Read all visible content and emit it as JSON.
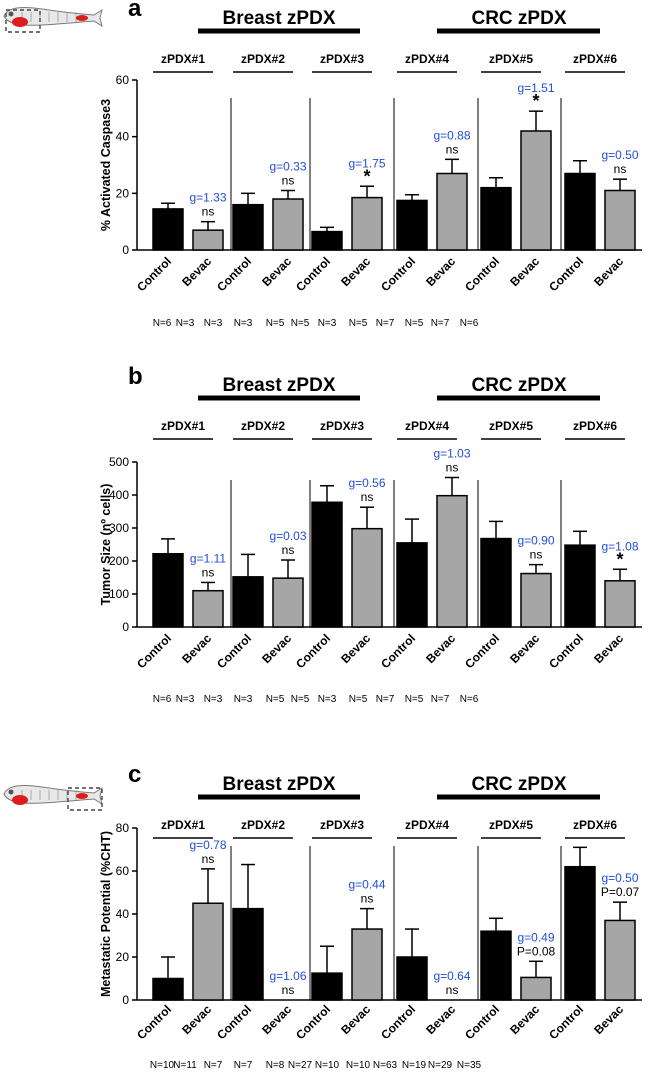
{
  "colors": {
    "control": "#000000",
    "bevac": "#a6a6a6",
    "effect": "#1f4fd6"
  },
  "icons": [
    "zebrafish-tumor-site-icon",
    "zebrafish-tail-site-icon"
  ],
  "chart_data": [
    {
      "panel": "a",
      "type": "bar",
      "ylabel": "% Activated Caspase3",
      "ylim": [
        0,
        60
      ],
      "yticks": [
        "0",
        "20",
        "40",
        "60"
      ],
      "groups": [
        {
          "label": "Breast zPDX",
          "members": [
            "zPDX#1",
            "zPDX#2",
            "zPDX#3"
          ]
        },
        {
          "label": "CRC zPDX",
          "members": [
            "zPDX#4",
            "zPDX#5",
            "zPDX#6"
          ]
        }
      ],
      "categories": [
        "Control",
        "Bevac"
      ],
      "models": [
        {
          "label": "zPDX#1",
          "control": 14.5,
          "control_err": 2.0,
          "bevac": 7,
          "bevac_err": 3.0,
          "g": "g=1.33",
          "sig": "ns"
        },
        {
          "label": "zPDX#2",
          "control": 16,
          "control_err": 4.0,
          "bevac": 18,
          "bevac_err": 3.0,
          "g": "g=0.33",
          "sig": "ns"
        },
        {
          "label": "zPDX#3",
          "control": 6.5,
          "control_err": 1.5,
          "bevac": 18.5,
          "bevac_err": 4.0,
          "g": "g=1.75",
          "sig": "*"
        },
        {
          "label": "zPDX#4",
          "control": 17.5,
          "control_err": 2.0,
          "bevac": 27,
          "bevac_err": 5.0,
          "g": "g=0.88",
          "sig": "ns"
        },
        {
          "label": "zPDX#5",
          "control": 22,
          "control_err": 3.5,
          "bevac": 42,
          "bevac_err": 7.0,
          "g": "g=1.51",
          "sig": "*"
        },
        {
          "label": "zPDX#6",
          "control": 27,
          "control_err": 4.5,
          "bevac": 21,
          "bevac_err": 4.0,
          "g": "g=0.50",
          "sig": "ns"
        }
      ],
      "n_labels": [
        "N=6",
        "N=3",
        "N=3",
        "N=3",
        "N=5",
        "N=5",
        "N=3",
        "N=5",
        "N=7",
        "N=5",
        "N=7",
        "N=6"
      ]
    },
    {
      "panel": "b",
      "type": "bar",
      "ylabel": "Tumor Size (nº cells)",
      "ylim": [
        0,
        500
      ],
      "yticks": [
        "0",
        "100",
        "200",
        "300",
        "400",
        "500"
      ],
      "groups": [
        {
          "label": "Breast zPDX",
          "members": [
            "zPDX#1",
            "zPDX#2",
            "zPDX#3"
          ]
        },
        {
          "label": "CRC zPDX",
          "members": [
            "zPDX#4",
            "zPDX#5",
            "zPDX#6"
          ]
        }
      ],
      "categories": [
        "Control",
        "Bevac"
      ],
      "models": [
        {
          "label": "zPDX#1",
          "control": 222,
          "control_err": 45,
          "bevac": 110,
          "bevac_err": 25,
          "g": "g=1.11",
          "sig": "ns"
        },
        {
          "label": "zPDX#2",
          "control": 152,
          "control_err": 68,
          "bevac": 148,
          "bevac_err": 55,
          "g": "g=0.03",
          "sig": "ns"
        },
        {
          "label": "zPDX#3",
          "control": 378,
          "control_err": 50,
          "bevac": 298,
          "bevac_err": 65,
          "g": "g=0.56",
          "sig": "ns"
        },
        {
          "label": "zPDX#4",
          "control": 255,
          "control_err": 72,
          "bevac": 398,
          "bevac_err": 55,
          "g": "g=1.03",
          "sig": "ns"
        },
        {
          "label": "zPDX#5",
          "control": 268,
          "control_err": 52,
          "bevac": 162,
          "bevac_err": 27,
          "g": "g=0.90",
          "sig": "ns"
        },
        {
          "label": "zPDX#6",
          "control": 248,
          "control_err": 42,
          "bevac": 140,
          "bevac_err": 35,
          "g": "g=1.08",
          "sig": "*"
        }
      ],
      "n_labels": [
        "N=6",
        "N=3",
        "N=3",
        "N=3",
        "N=5",
        "N=5",
        "N=3",
        "N=5",
        "N=7",
        "N=5",
        "N=7",
        "N=6"
      ]
    },
    {
      "panel": "c",
      "type": "bar",
      "ylabel": "Metastatic Potential (%CHT)",
      "ylim": [
        0,
        80
      ],
      "yticks": [
        "0",
        "20",
        "40",
        "60",
        "80"
      ],
      "groups": [
        {
          "label": "Breast zPDX",
          "members": [
            "zPDX#1",
            "zPDX#2",
            "zPDX#3"
          ]
        },
        {
          "label": "CRC zPDX",
          "members": [
            "zPDX#4",
            "zPDX#5",
            "zPDX#6"
          ]
        }
      ],
      "categories": [
        "Control",
        "Bevac"
      ],
      "models": [
        {
          "label": "zPDX#1",
          "control": 10,
          "control_err": 10,
          "bevac": 45,
          "bevac_err": 16,
          "g": "g=0.78",
          "sig": "ns"
        },
        {
          "label": "zPDX#2",
          "control": 42.5,
          "control_err": 20.5,
          "bevac": 0,
          "bevac_err": 0,
          "g": "g=1.06",
          "sig": "ns"
        },
        {
          "label": "zPDX#3",
          "control": 12.5,
          "control_err": 12.5,
          "bevac": 33,
          "bevac_err": 9.5,
          "g": "g=0.44",
          "sig": "ns"
        },
        {
          "label": "zPDX#4",
          "control": 20,
          "control_err": 13,
          "bevac": 0,
          "bevac_err": 0,
          "g": "g=0.64",
          "sig": "ns"
        },
        {
          "label": "zPDX#5",
          "control": 32,
          "control_err": 6,
          "bevac": 10.5,
          "bevac_err": 7.5,
          "g": "g=0.49",
          "sig": "P=0.08"
        },
        {
          "label": "zPDX#6",
          "control": 62,
          "control_err": 9,
          "bevac": 37,
          "bevac_err": 8.5,
          "g": "g=0.50",
          "sig": "P=0.07"
        }
      ],
      "n_labels": [
        "N=10",
        "N=11",
        "N=7",
        "N=7",
        "N=8",
        "N=27",
        "N=10",
        "N=10",
        "N=63",
        "N=19",
        "N=29",
        "N=35"
      ]
    }
  ]
}
